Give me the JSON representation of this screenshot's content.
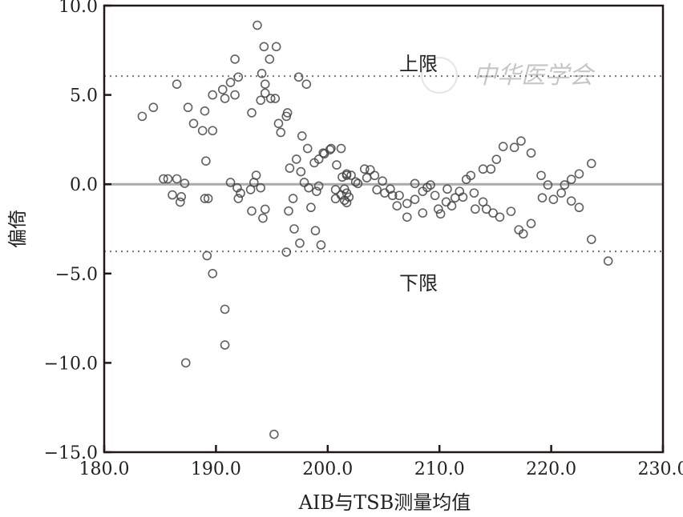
{
  "chart_data": {
    "type": "scatter",
    "title": "",
    "xlabel": "AIB与TSB测量均值",
    "ylabel": "偏倚",
    "xlim": [
      180,
      230
    ],
    "ylim": [
      -15,
      10
    ],
    "xticks": [
      "180.0",
      "190.0",
      "200.0",
      "210.0",
      "220.0",
      "230.0"
    ],
    "xtick_values": [
      180,
      190,
      200,
      210,
      220,
      230
    ],
    "yticks": [
      "10.0",
      "5.0",
      "0.0",
      "−5.0",
      "−10.0",
      "−15.0"
    ],
    "ytick_values": [
      10,
      5,
      0,
      -5,
      -10,
      -15
    ],
    "grid": false,
    "mean_line": 0.0,
    "upper_limit": {
      "value": 6.05,
      "label": "上限"
    },
    "lower_limit": {
      "value": -3.76,
      "label": "下限"
    },
    "watermark": "中华医学会",
    "colors": {
      "point": "#444444",
      "mean": "#aaaaaa",
      "limit": "#777777",
      "axis": "#231815"
    },
    "points": [
      [
        183.4,
        3.8
      ],
      [
        184.4,
        4.3
      ],
      [
        186.5,
        5.6
      ],
      [
        187.5,
        4.3
      ],
      [
        188.0,
        3.4
      ],
      [
        188.8,
        3.0
      ],
      [
        189.7,
        3.0
      ],
      [
        189.0,
        4.1
      ],
      [
        189.1,
        1.3
      ],
      [
        189.7,
        5.0
      ],
      [
        190.6,
        5.3
      ],
      [
        191.3,
        5.7
      ],
      [
        190.8,
        4.8
      ],
      [
        191.7,
        5.0
      ],
      [
        191.7,
        7.0
      ],
      [
        192.0,
        6.0
      ],
      [
        193.2,
        4.0
      ],
      [
        193.7,
        8.9
      ],
      [
        194.3,
        7.7
      ],
      [
        195.4,
        7.7
      ],
      [
        194.8,
        7.0
      ],
      [
        194.1,
        6.2
      ],
      [
        194.4,
        5.6
      ],
      [
        194.0,
        4.7
      ],
      [
        194.9,
        4.8
      ],
      [
        194.4,
        5.1
      ],
      [
        195.3,
        4.8
      ],
      [
        196.4,
        4.0
      ],
      [
        195.6,
        3.4
      ],
      [
        195.8,
        2.9
      ],
      [
        196.3,
        3.8
      ],
      [
        197.4,
        6.0
      ],
      [
        198.1,
        5.6
      ],
      [
        197.7,
        2.7
      ],
      [
        198.2,
        2.0
      ],
      [
        185.3,
        0.3
      ],
      [
        185.7,
        0.3
      ],
      [
        186.5,
        0.3
      ],
      [
        187.2,
        0.05
      ],
      [
        186.1,
        -0.6
      ],
      [
        186.9,
        -0.7
      ],
      [
        186.8,
        -1.0
      ],
      [
        189.0,
        -0.8
      ],
      [
        189.3,
        -0.8
      ],
      [
        191.3,
        0.1
      ],
      [
        191.9,
        -0.2
      ],
      [
        192.2,
        -0.5
      ],
      [
        192.0,
        -0.8
      ],
      [
        193.1,
        -0.3
      ],
      [
        193.6,
        0.5
      ],
      [
        193.4,
        0.1
      ],
      [
        194.0,
        -0.2
      ],
      [
        193.2,
        -1.5
      ],
      [
        194.4,
        -1.4
      ],
      [
        194.2,
        -1.9
      ],
      [
        189.2,
        -4.0
      ],
      [
        189.7,
        -5.0
      ],
      [
        190.8,
        -7.0
      ],
      [
        190.8,
        -9.0
      ],
      [
        187.3,
        -10.0
      ],
      [
        195.2,
        -14.0
      ],
      [
        196.3,
        -3.8
      ],
      [
        196.5,
        -1.5
      ],
      [
        197.0,
        -2.5
      ],
      [
        197.5,
        -3.3
      ],
      [
        198.9,
        -2.6
      ],
      [
        199.4,
        -3.4
      ],
      [
        196.9,
        -0.8
      ],
      [
        196.6,
        0.9
      ],
      [
        197.2,
        1.4
      ],
      [
        197.6,
        0.7
      ],
      [
        197.9,
        0.1
      ],
      [
        198.3,
        -0.2
      ],
      [
        199.0,
        -0.4
      ],
      [
        198.5,
        -1.3
      ],
      [
        199.2,
        -0.1
      ],
      [
        198.8,
        1.2
      ],
      [
        199.2,
        1.4
      ],
      [
        199.7,
        1.7
      ],
      [
        200.3,
        2.0
      ],
      [
        201.2,
        2.0
      ],
      [
        200.7,
        -0.3
      ],
      [
        201.2,
        -0.6
      ],
      [
        201.7,
        0.5
      ],
      [
        202.1,
        0.5
      ],
      [
        201.5,
        -0.9
      ],
      [
        201.7,
        -0.5
      ],
      [
        199.6,
        1.75
      ],
      [
        200.2,
        1.93
      ],
      [
        200.8,
        1.08
      ],
      [
        201.3,
        0.4
      ],
      [
        201.7,
        0.58
      ],
      [
        201.5,
        -0.27
      ],
      [
        200.7,
        -0.81
      ],
      [
        201.7,
        -1.03
      ],
      [
        201.9,
        -0.72
      ],
      [
        202.5,
        0.13
      ],
      [
        202.7,
        0.04
      ],
      [
        203.3,
        0.85
      ],
      [
        203.8,
        0.81
      ],
      [
        203.5,
        0.36
      ],
      [
        204.2,
        0.49
      ],
      [
        204.4,
        -0.31
      ],
      [
        204.9,
        0.18
      ],
      [
        205.1,
        -0.49
      ],
      [
        205.6,
        -0.27
      ],
      [
        205.8,
        -0.63
      ],
      [
        206.2,
        -1.21
      ],
      [
        206.4,
        -0.63
      ],
      [
        207.1,
        -1.08
      ],
      [
        207.1,
        -1.84
      ],
      [
        207.8,
        0.04
      ],
      [
        207.8,
        -0.85
      ],
      [
        208.5,
        -1.61
      ],
      [
        208.5,
        -0.4
      ],
      [
        208.9,
        -0.18
      ],
      [
        209.2,
        -0.04
      ],
      [
        209.6,
        -0.63
      ],
      [
        209.9,
        -1.39
      ],
      [
        210.1,
        -1.66
      ],
      [
        210.6,
        -0.99
      ],
      [
        210.7,
        -0.27
      ],
      [
        211.1,
        -1.21
      ],
      [
        211.4,
        -0.76
      ],
      [
        211.8,
        -0.4
      ],
      [
        212.1,
        -0.72
      ],
      [
        212.4,
        0.27
      ],
      [
        212.8,
        0.49
      ],
      [
        213.1,
        -0.49
      ],
      [
        213.2,
        -1.39
      ],
      [
        213.9,
        -0.99
      ],
      [
        214.2,
        -1.39
      ],
      [
        214.8,
        -1.61
      ],
      [
        215.4,
        -1.84
      ],
      [
        213.9,
        0.85
      ],
      [
        214.6,
        0.85
      ],
      [
        215.1,
        1.39
      ],
      [
        215.7,
        2.11
      ],
      [
        216.7,
        2.06
      ],
      [
        217.3,
        2.42
      ],
      [
        218.2,
        1.75
      ],
      [
        216.4,
        -1.52
      ],
      [
        217.1,
        -2.55
      ],
      [
        217.5,
        -2.78
      ],
      [
        218.2,
        -2.2
      ],
      [
        219.1,
        0.49
      ],
      [
        219.7,
        -0.04
      ],
      [
        219.2,
        -0.76
      ],
      [
        220.2,
        -0.85
      ],
      [
        220.9,
        -0.49
      ],
      [
        221.2,
        -0.04
      ],
      [
        221.8,
        0.27
      ],
      [
        222.5,
        0.58
      ],
      [
        221.8,
        -0.94
      ],
      [
        222.5,
        -1.3
      ],
      [
        223.6,
        1.16
      ],
      [
        223.6,
        -3.09
      ],
      [
        225.1,
        -4.3
      ]
    ]
  }
}
